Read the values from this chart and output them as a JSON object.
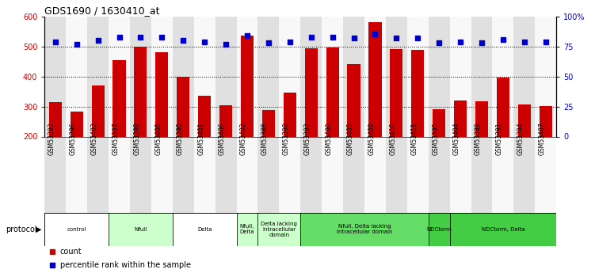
{
  "title": "GDS1690 / 1630410_at",
  "samples": [
    "GSM53393",
    "GSM53396",
    "GSM53403",
    "GSM53397",
    "GSM53399",
    "GSM53408",
    "GSM53390",
    "GSM53401",
    "GSM53406",
    "GSM53402",
    "GSM53388",
    "GSM53398",
    "GSM53392",
    "GSM53400",
    "GSM53405",
    "GSM53409",
    "GSM53410",
    "GSM53411",
    "GSM53395",
    "GSM53404",
    "GSM53389",
    "GSM53391",
    "GSM53394",
    "GSM53407"
  ],
  "counts": [
    315,
    283,
    370,
    455,
    500,
    480,
    400,
    335,
    305,
    535,
    288,
    347,
    493,
    497,
    440,
    580,
    490,
    488,
    291,
    320,
    317,
    395,
    308,
    302
  ],
  "percentiles": [
    79,
    77,
    80,
    83,
    83,
    83,
    80,
    79,
    77,
    84,
    78,
    79,
    83,
    83,
    82,
    85,
    82,
    82,
    78,
    79,
    78,
    81,
    79,
    79
  ],
  "bar_color": "#cc0000",
  "dot_color": "#0000cc",
  "ylim_left": [
    200,
    600
  ],
  "ylim_right": [
    0,
    100
  ],
  "yticks_left": [
    200,
    300,
    400,
    500,
    600
  ],
  "yticks_right": [
    0,
    25,
    50,
    75,
    100
  ],
  "grid_lines": [
    300,
    400,
    500
  ],
  "protocols": [
    {
      "label": "control",
      "start": 0,
      "end": 3,
      "color": "#ffffff"
    },
    {
      "label": "Nfull",
      "start": 3,
      "end": 6,
      "color": "#ccffcc"
    },
    {
      "label": "Delta",
      "start": 6,
      "end": 9,
      "color": "#ffffff"
    },
    {
      "label": "Nfull,\nDelta",
      "start": 9,
      "end": 10,
      "color": "#ccffcc"
    },
    {
      "label": "Delta lacking\nintracellular\ndomain",
      "start": 10,
      "end": 12,
      "color": "#ccffcc"
    },
    {
      "label": "Nfull, Delta lacking\nintracellular domain",
      "start": 12,
      "end": 18,
      "color": "#66dd66"
    },
    {
      "label": "NDCterm",
      "start": 18,
      "end": 19,
      "color": "#44cc44"
    },
    {
      "label": "NDCterm, Delta",
      "start": 19,
      "end": 24,
      "color": "#44cc44"
    }
  ],
  "col_bg_even": "#e0e0e0",
  "col_bg_odd": "#f8f8f8",
  "bg_color": "#ffffff",
  "tick_color_left": "#cc0000",
  "tick_color_right": "#0000cc"
}
